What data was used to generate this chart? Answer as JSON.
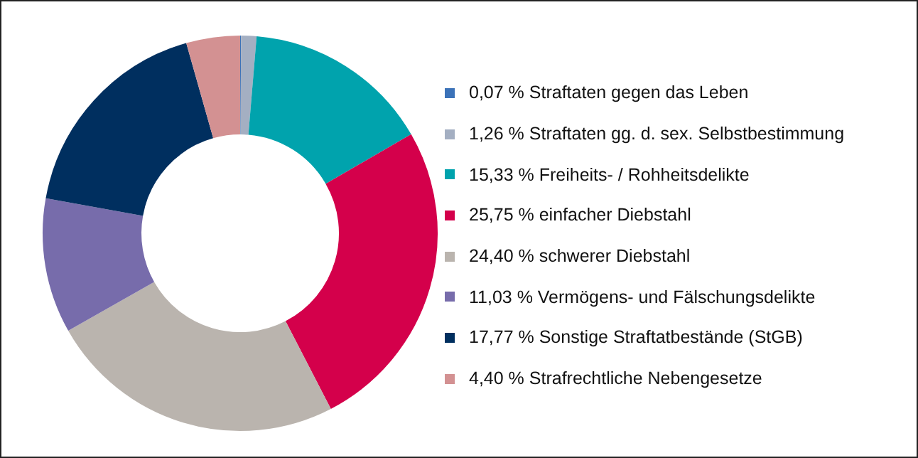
{
  "chart_data": {
    "type": "donut",
    "categories": [
      "0,07 % Straftaten gegen das Leben",
      "1,26 % Straftaten gg. d. sex. Selbstbestimmung",
      "15,33 % Freiheits- / Rohheitsdelikte",
      "25,75 % einfacher Diebstahl",
      "24,40 % schwerer Diebstahl",
      "11,03 % Vermögens- und Fälschungsdelikte",
      "17,77 % Sonstige Straftatbestände (StGB)",
      "4,40 % Strafrechtliche Nebengesetze"
    ],
    "values": [
      0.07,
      1.26,
      15.33,
      25.75,
      24.4,
      11.03,
      17.77,
      4.4
    ],
    "colors": [
      "#3b72b8",
      "#a4afc2",
      "#00a3ad",
      "#d4004b",
      "#bab4ae",
      "#776cab",
      "#002f5f",
      "#d39192"
    ],
    "legend": "right"
  }
}
